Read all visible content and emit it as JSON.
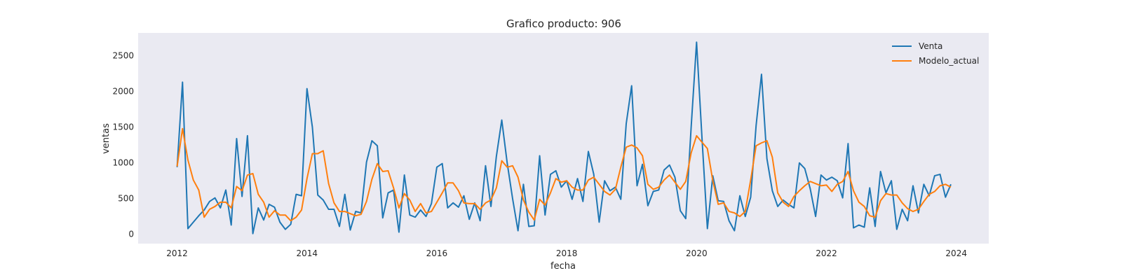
{
  "chart_data": {
    "type": "line",
    "title": "Grafico producto: 906",
    "xlabel": "fecha",
    "ylabel": "ventas",
    "xlim": [
      2011.4,
      2024.5
    ],
    "ylim": [
      -130,
      2820
    ],
    "xticks": [
      2012,
      2014,
      2016,
      2018,
      2020,
      2022,
      2024
    ],
    "yticks": [
      0,
      500,
      1000,
      1500,
      2000,
      2500
    ],
    "grid": false,
    "legend_position": "top-right",
    "background_color": "#eaeaf2",
    "x_start": 2012.0,
    "x_step_months": 1,
    "series": [
      {
        "name": "Venta",
        "color": "#1f77b4",
        "values": [
          940,
          2130,
          80,
          170,
          260,
          340,
          460,
          510,
          370,
          620,
          130,
          1340,
          530,
          1380,
          10,
          370,
          200,
          420,
          380,
          170,
          70,
          140,
          560,
          540,
          2040,
          1500,
          550,
          480,
          350,
          350,
          110,
          560,
          60,
          320,
          300,
          1010,
          1310,
          1240,
          230,
          580,
          620,
          30,
          830,
          270,
          240,
          340,
          250,
          430,
          940,
          990,
          370,
          440,
          380,
          540,
          210,
          440,
          190,
          960,
          390,
          1090,
          1600,
          1000,
          500,
          50,
          700,
          110,
          120,
          1100,
          270,
          840,
          890,
          660,
          750,
          490,
          780,
          460,
          1160,
          840,
          170,
          750,
          610,
          660,
          490,
          1550,
          2080,
          680,
          980,
          400,
          600,
          620,
          900,
          970,
          800,
          330,
          220,
          1500,
          2690,
          1350,
          80,
          820,
          470,
          460,
          190,
          50,
          540,
          250,
          520,
          1520,
          2240,
          1060,
          610,
          390,
          480,
          420,
          370,
          1000,
          920,
          640,
          250,
          830,
          760,
          800,
          750,
          510,
          1270,
          90,
          130,
          100,
          650,
          110,
          880,
          580,
          750,
          70,
          350,
          190,
          680,
          300,
          700,
          540,
          820,
          840,
          520,
          700
        ]
      },
      {
        "name": "Modelo_actual",
        "color": "#ff7f0e",
        "values": [
          950,
          1480,
          1040,
          760,
          620,
          240,
          350,
          390,
          450,
          450,
          370,
          670,
          610,
          830,
          850,
          560,
          450,
          240,
          330,
          270,
          270,
          190,
          240,
          340,
          780,
          1130,
          1130,
          1170,
          710,
          440,
          320,
          320,
          290,
          260,
          280,
          460,
          770,
          990,
          880,
          890,
          650,
          370,
          570,
          480,
          320,
          430,
          300,
          320,
          450,
          580,
          720,
          720,
          610,
          440,
          430,
          430,
          350,
          440,
          480,
          650,
          1030,
          940,
          960,
          800,
          480,
          310,
          200,
          490,
          410,
          580,
          780,
          730,
          750,
          660,
          620,
          620,
          760,
          800,
          700,
          600,
          550,
          630,
          940,
          1220,
          1250,
          1210,
          1100,
          700,
          630,
          660,
          760,
          830,
          730,
          630,
          740,
          1140,
          1380,
          1290,
          1200,
          750,
          420,
          440,
          320,
          300,
          250,
          320,
          760,
          1240,
          1280,
          1310,
          1080,
          580,
          450,
          390,
          530,
          610,
          680,
          740,
          710,
          680,
          690,
          600,
          700,
          740,
          880,
          610,
          450,
          390,
          260,
          240,
          470,
          570,
          550,
          550,
          440,
          360,
          320,
          350,
          460,
          560,
          600,
          680,
          700,
          660
        ]
      }
    ]
  }
}
